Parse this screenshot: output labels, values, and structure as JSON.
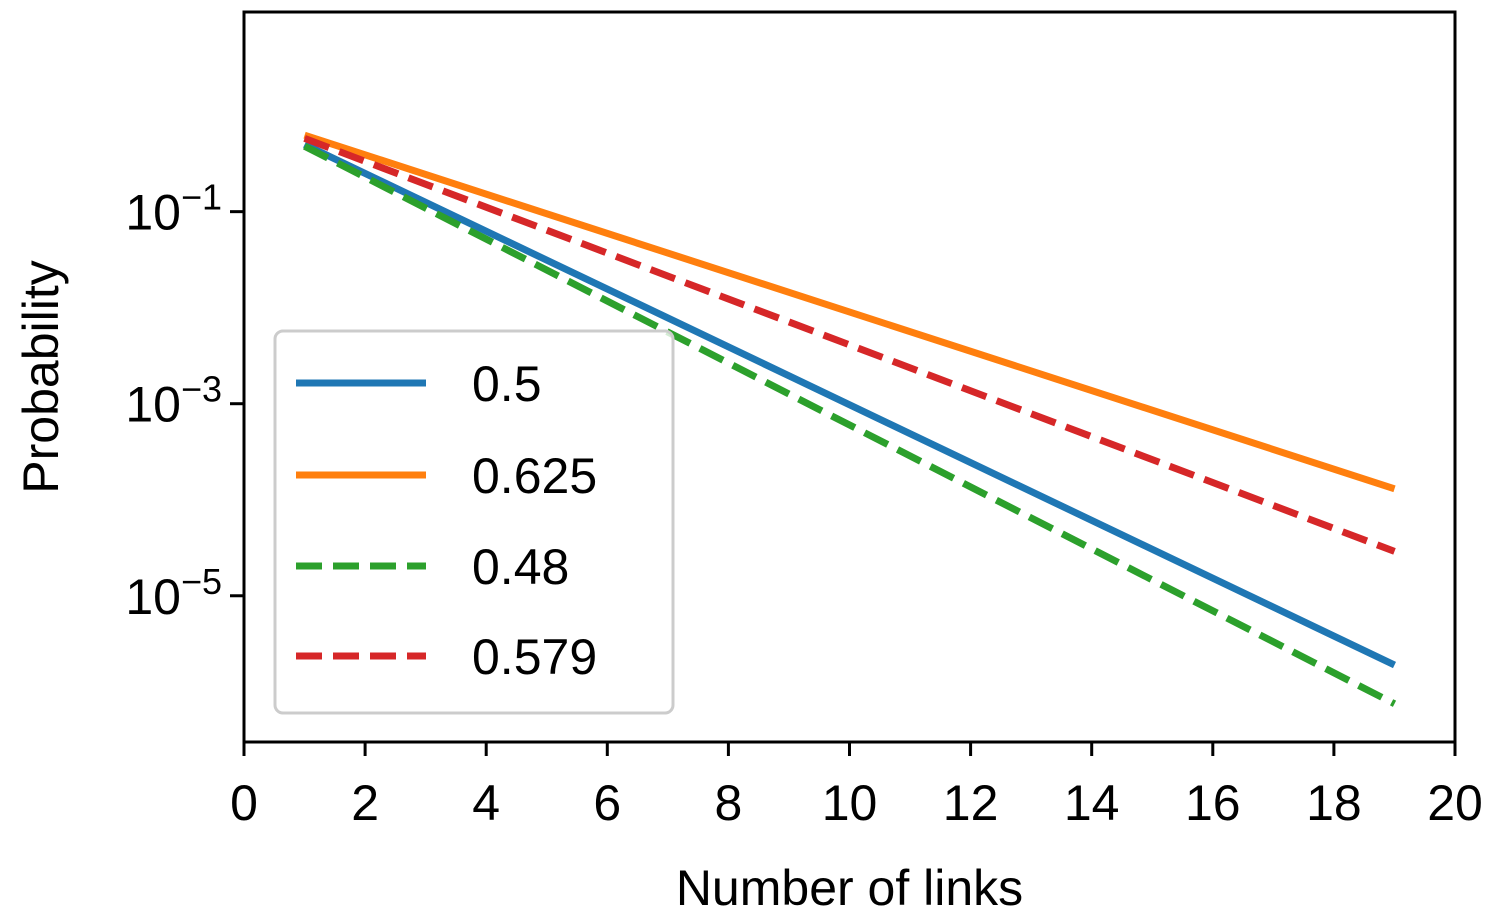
{
  "chart_data": {
    "type": "line",
    "xlabel": "Number of links",
    "ylabel": "Probability",
    "xlim": [
      0,
      20
    ],
    "ylim": [
      3e-07,
      12
    ],
    "yscale": "log",
    "grid": false,
    "legend_position": "lower-left",
    "x_ticks": [
      0,
      2,
      4,
      6,
      8,
      10,
      12,
      14,
      16,
      18,
      20
    ],
    "x_tick_labels": [
      "0",
      "2",
      "4",
      "6",
      "8",
      "10",
      "12",
      "14",
      "16",
      "18",
      "20"
    ],
    "y_ticks": [
      {
        "value": 0.1,
        "base": "10",
        "exp": "−1"
      },
      {
        "value": 0.001,
        "base": "10",
        "exp": "−3"
      },
      {
        "value": 1e-05,
        "base": "10",
        "exp": "−5"
      }
    ],
    "x": [
      1,
      19
    ],
    "series": [
      {
        "name": "0.5",
        "values": [
          0.5,
          1.9e-06
        ],
        "color": "#1f77b4",
        "dash": "solid"
      },
      {
        "name": "0.625",
        "values": [
          0.625,
          0.00013
        ],
        "color": "#ff7f0e",
        "dash": "solid"
      },
      {
        "name": "0.48",
        "values": [
          0.48,
          7.5e-07
        ],
        "color": "#2ca02c",
        "dash": "dashed"
      },
      {
        "name": "0.579",
        "values": [
          0.579,
          2.9e-05
        ],
        "color": "#d62728",
        "dash": "dashed"
      }
    ]
  }
}
